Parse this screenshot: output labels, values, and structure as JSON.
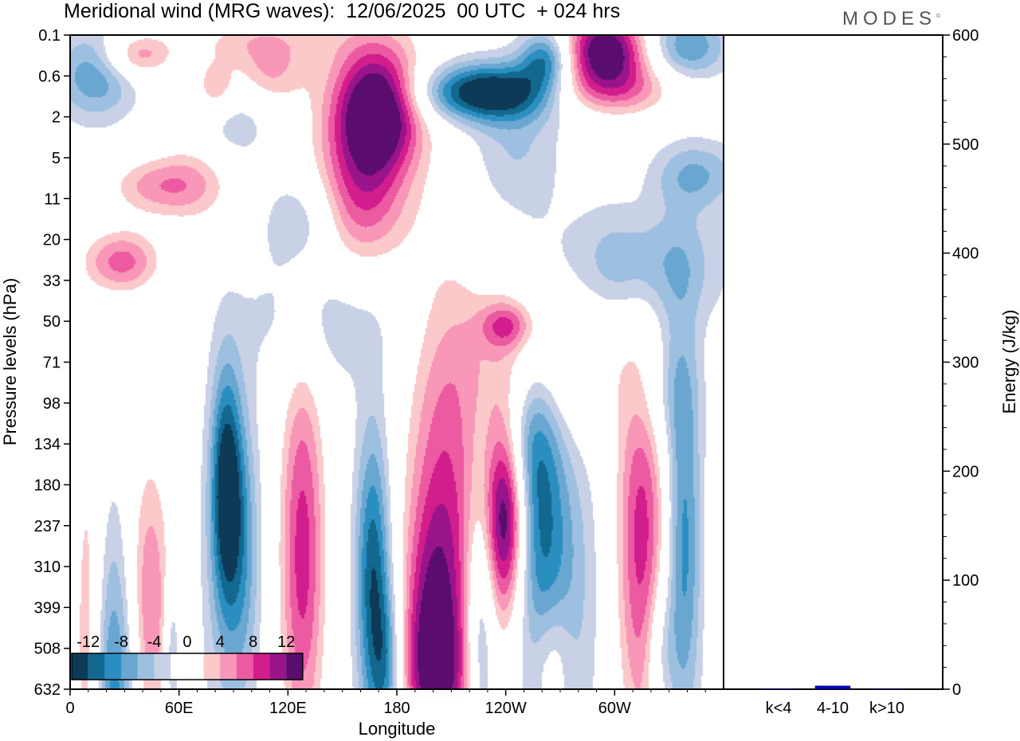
{
  "title": "Meridional wind (MRG waves):  12/06/2025  00 UTC  + 024 hrs",
  "brand": "MODES",
  "brand_mark": "©",
  "chart_data": [
    {
      "type": "heatmap",
      "xlabel": "Longitude",
      "ylabel": "Pressure levels (hPa)",
      "x_ticks": [
        "0",
        "60E",
        "120E",
        "180",
        "120W",
        "60W"
      ],
      "x_tick_values": [
        0,
        60,
        120,
        180,
        240,
        300
      ],
      "xlim": [
        0,
        360
      ],
      "y_ticks": [
        "0.1",
        "0.6",
        "2",
        "5",
        "11",
        "20",
        "33",
        "50",
        "71",
        "98",
        "134",
        "180",
        "237",
        "310",
        "399",
        "508",
        "632"
      ],
      "colorbar": {
        "labels": [
          "-12",
          "-8",
          "-4",
          "0",
          "4",
          "8",
          "12"
        ],
        "levels": [
          -14,
          -12,
          -10,
          -8,
          -6,
          -4,
          -2,
          2,
          4,
          6,
          8,
          10,
          12,
          14
        ],
        "colors": [
          "#0c3a57",
          "#13688f",
          "#2a8fc0",
          "#6aa7d0",
          "#9dbfe0",
          "#c9d1e6",
          "#ffffff",
          "#ffffff",
          "#fcc9cb",
          "#f897b8",
          "#ec5aa2",
          "#d11e8c",
          "#99148a",
          "#5a0d6c"
        ]
      },
      "blobs": [
        {
          "lon": 25,
          "lev": 16.6,
          "rlon": 10,
          "rlev": 3.3,
          "amp": -10
        },
        {
          "lon": 14,
          "lev": 0.95,
          "rlon": 16,
          "rlev": 0.8,
          "amp": -8
        },
        {
          "lon": 10,
          "lev": 15.3,
          "rlon": 6,
          "rlev": 4.1,
          "amp": 7
        },
        {
          "lon": 43,
          "lev": 14.1,
          "rlon": 9,
          "rlev": 2.7,
          "amp": 9
        },
        {
          "lon": 36,
          "lev": 0.5,
          "rlon": 14,
          "rlev": 0.4,
          "amp": 8
        },
        {
          "lon": 45,
          "lev": 3.7,
          "rlon": 18,
          "rlev": 0.5,
          "amp": 6
        },
        {
          "lon": 29,
          "lev": 5.5,
          "rlon": 16,
          "rlev": 0.5,
          "amp": 4
        },
        {
          "lon": 56,
          "lev": 15.2,
          "rlon": 3,
          "rlev": 1.3,
          "amp": -6
        },
        {
          "lon": 86,
          "lev": 11.0,
          "rlon": 6,
          "rlev": 2.0,
          "amp": -12
        },
        {
          "lon": 96,
          "lev": 12.6,
          "rlon": 7,
          "rlev": 2.5,
          "amp": -5
        },
        {
          "lon": 86,
          "lev": 13.5,
          "rlon": 10,
          "rlev": 3.4,
          "amp": -4
        },
        {
          "lon": 128,
          "lev": 12.7,
          "rlon": 9,
          "rlev": 3.6,
          "amp": 11
        },
        {
          "lon": 167,
          "lev": 13.3,
          "rlon": 7,
          "rlev": 2.7,
          "amp": -12
        },
        {
          "lon": 175,
          "lev": 15.5,
          "rlon": 6,
          "rlev": 1.4,
          "amp": -7
        },
        {
          "lon": 207,
          "lev": 12.8,
          "rlon": 16,
          "rlev": 4.5,
          "amp": 11
        },
        {
          "lon": 198,
          "lev": 14.5,
          "rlon": 10,
          "rlev": 2.0,
          "amp": 6
        },
        {
          "lon": 201,
          "lev": 15.7,
          "rlon": 14,
          "rlev": 1.2,
          "amp": 5
        },
        {
          "lon": 226,
          "lev": 14.6,
          "rlon": 6,
          "rlev": 2.3,
          "amp": -9
        },
        {
          "lon": 240,
          "lev": 11.7,
          "rlon": 8,
          "rlev": 1.8,
          "amp": 16
        },
        {
          "lon": 258,
          "lev": 12.1,
          "rlon": 10,
          "rlev": 3.3,
          "amp": -9
        },
        {
          "lon": 248,
          "lev": 9.8,
          "rlon": 12,
          "rlev": 1.2,
          "amp": -5
        },
        {
          "lon": 265,
          "lev": 15.3,
          "rlon": 8,
          "rlev": 1.2,
          "amp": 6
        },
        {
          "lon": 275,
          "lev": 13.6,
          "rlon": 12,
          "rlev": 3.5,
          "amp": -5
        },
        {
          "lon": 315,
          "lev": 12.3,
          "rlon": 10,
          "rlev": 3.7,
          "amp": 11
        },
        {
          "lon": 338,
          "lev": 12.5,
          "rlon": 7,
          "rlev": 3.4,
          "amp": -9
        },
        {
          "lon": 325,
          "lev": 15.0,
          "rlon": 6,
          "rlev": 1.2,
          "amp": -5
        },
        {
          "lon": 356,
          "lev": 13.1,
          "rlon": 3,
          "rlev": 1.3,
          "amp": 4
        },
        {
          "lon": 140,
          "lev": 6.9,
          "rlon": 30,
          "rlev": 1.2,
          "amp": -4
        },
        {
          "lon": 265,
          "lev": 7.8,
          "rlon": 32,
          "rlev": 1.5,
          "amp": 6
        },
        {
          "lon": 240,
          "lev": 7.1,
          "rlon": 10,
          "rlev": 0.4,
          "amp": 7
        },
        {
          "lon": 325,
          "lev": 8.6,
          "rlon": 14,
          "rlev": 1.2,
          "amp": -5
        },
        {
          "lon": 310,
          "lev": 6.0,
          "rlon": 30,
          "rlev": 1.0,
          "amp": -4
        },
        {
          "lon": 318,
          "lev": 5.3,
          "rlon": 30,
          "rlev": 1.0,
          "amp": -4
        },
        {
          "lon": 170,
          "lev": 1.8,
          "rlon": 16,
          "rlev": 1.0,
          "amp": 14
        },
        {
          "lon": 160,
          "lev": 4.0,
          "rlon": 18,
          "rlev": 1.4,
          "amp": 8
        },
        {
          "lon": 165,
          "lev": 1.7,
          "rlon": 22,
          "rlev": 2.0,
          "amp": 5
        },
        {
          "lon": 230,
          "lev": 1.4,
          "rlon": 28,
          "rlev": 0.5,
          "amp": -15
        },
        {
          "lon": 262,
          "lev": 0.6,
          "rlon": 10,
          "rlev": 0.5,
          "amp": -10
        },
        {
          "lon": 295,
          "lev": 0.3,
          "rlon": 16,
          "rlev": 0.6,
          "amp": 16
        },
        {
          "lon": 296,
          "lev": 1.3,
          "rlon": 26,
          "rlev": 0.5,
          "amp": 9
        },
        {
          "lon": 340,
          "lev": 0.3,
          "rlon": 16,
          "rlev": 0.6,
          "amp": -8
        },
        {
          "lon": 345,
          "lev": 3.4,
          "rlon": 18,
          "rlev": 0.6,
          "amp": -6
        },
        {
          "lon": 80,
          "lev": 1.3,
          "rlon": 8,
          "rlev": 0.5,
          "amp": 6
        },
        {
          "lon": 110,
          "lev": 0.9,
          "rlon": 14,
          "rlev": 0.6,
          "amp": 6
        },
        {
          "lon": 70,
          "lev": 3.6,
          "rlon": 16,
          "rlev": 0.8,
          "amp": 5
        },
        {
          "lon": 90,
          "lev": 2.2,
          "rlon": 14,
          "rlev": 0.7,
          "amp": -4
        },
        {
          "lon": 245,
          "lev": 2.8,
          "rlon": 18,
          "rlev": 1.2,
          "amp": -4
        },
        {
          "lon": 128,
          "lev": 4.5,
          "rlon": 14,
          "rlev": 0.8,
          "amp": -5
        },
        {
          "lon": 28,
          "lev": 5.6,
          "rlon": 14,
          "rlev": 0.6,
          "amp": 5
        },
        {
          "lon": 100,
          "lev": 0.1,
          "rlon": 30,
          "rlev": 0.4,
          "amp": 4
        }
      ]
    },
    {
      "type": "bar",
      "ylabel": "Energy (J/kg)",
      "ylim": [
        0,
        600
      ],
      "y_ticks": [
        "0",
        "100",
        "200",
        "300",
        "400",
        "500",
        "600"
      ],
      "categories": [
        "k<4",
        "4-10",
        "k>10"
      ],
      "values": [
        0.5,
        3,
        0.3
      ],
      "colors": [
        "#0000cc",
        "#0000cc",
        "#0000cc"
      ]
    }
  ]
}
